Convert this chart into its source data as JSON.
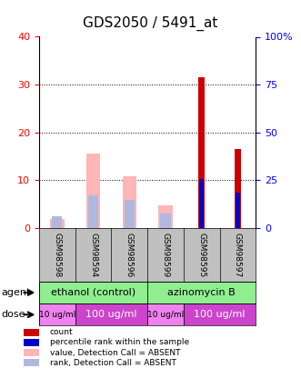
{
  "title": "GDS2050 / 5491_at",
  "samples": [
    "GSM98598",
    "GSM98594",
    "GSM98596",
    "GSM98599",
    "GSM98595",
    "GSM98597"
  ],
  "count_values": [
    0,
    0,
    0,
    0,
    31.5,
    16.5
  ],
  "percentile_values": [
    0,
    0,
    0,
    0,
    10.2,
    7.5
  ],
  "absent_value_bars": [
    2.0,
    15.5,
    10.8,
    4.8,
    0,
    0
  ],
  "absent_rank_bars": [
    2.5,
    6.8,
    6.0,
    3.0,
    0,
    0
  ],
  "ylim_left": [
    0,
    40
  ],
  "ylim_right": [
    0,
    100
  ],
  "yticks_left": [
    0,
    10,
    20,
    30,
    40
  ],
  "yticks_right": [
    0,
    25,
    50,
    75,
    100
  ],
  "yticklabels_right": [
    "0",
    "25",
    "50",
    "75",
    "100%"
  ],
  "bar_width": 0.35,
  "count_color": "#cc0000",
  "percentile_color": "#0000cc",
  "absent_value_color": "#ffb6b6",
  "absent_rank_color": "#b0b8e0",
  "plot_bg": "#ffffff",
  "legend_items": [
    [
      "#cc0000",
      "count"
    ],
    [
      "#0000cc",
      "percentile rank within the sample"
    ],
    [
      "#ffb6b6",
      "value, Detection Call = ABSENT"
    ],
    [
      "#b0b8e0",
      "rank, Detection Call = ABSENT"
    ]
  ]
}
